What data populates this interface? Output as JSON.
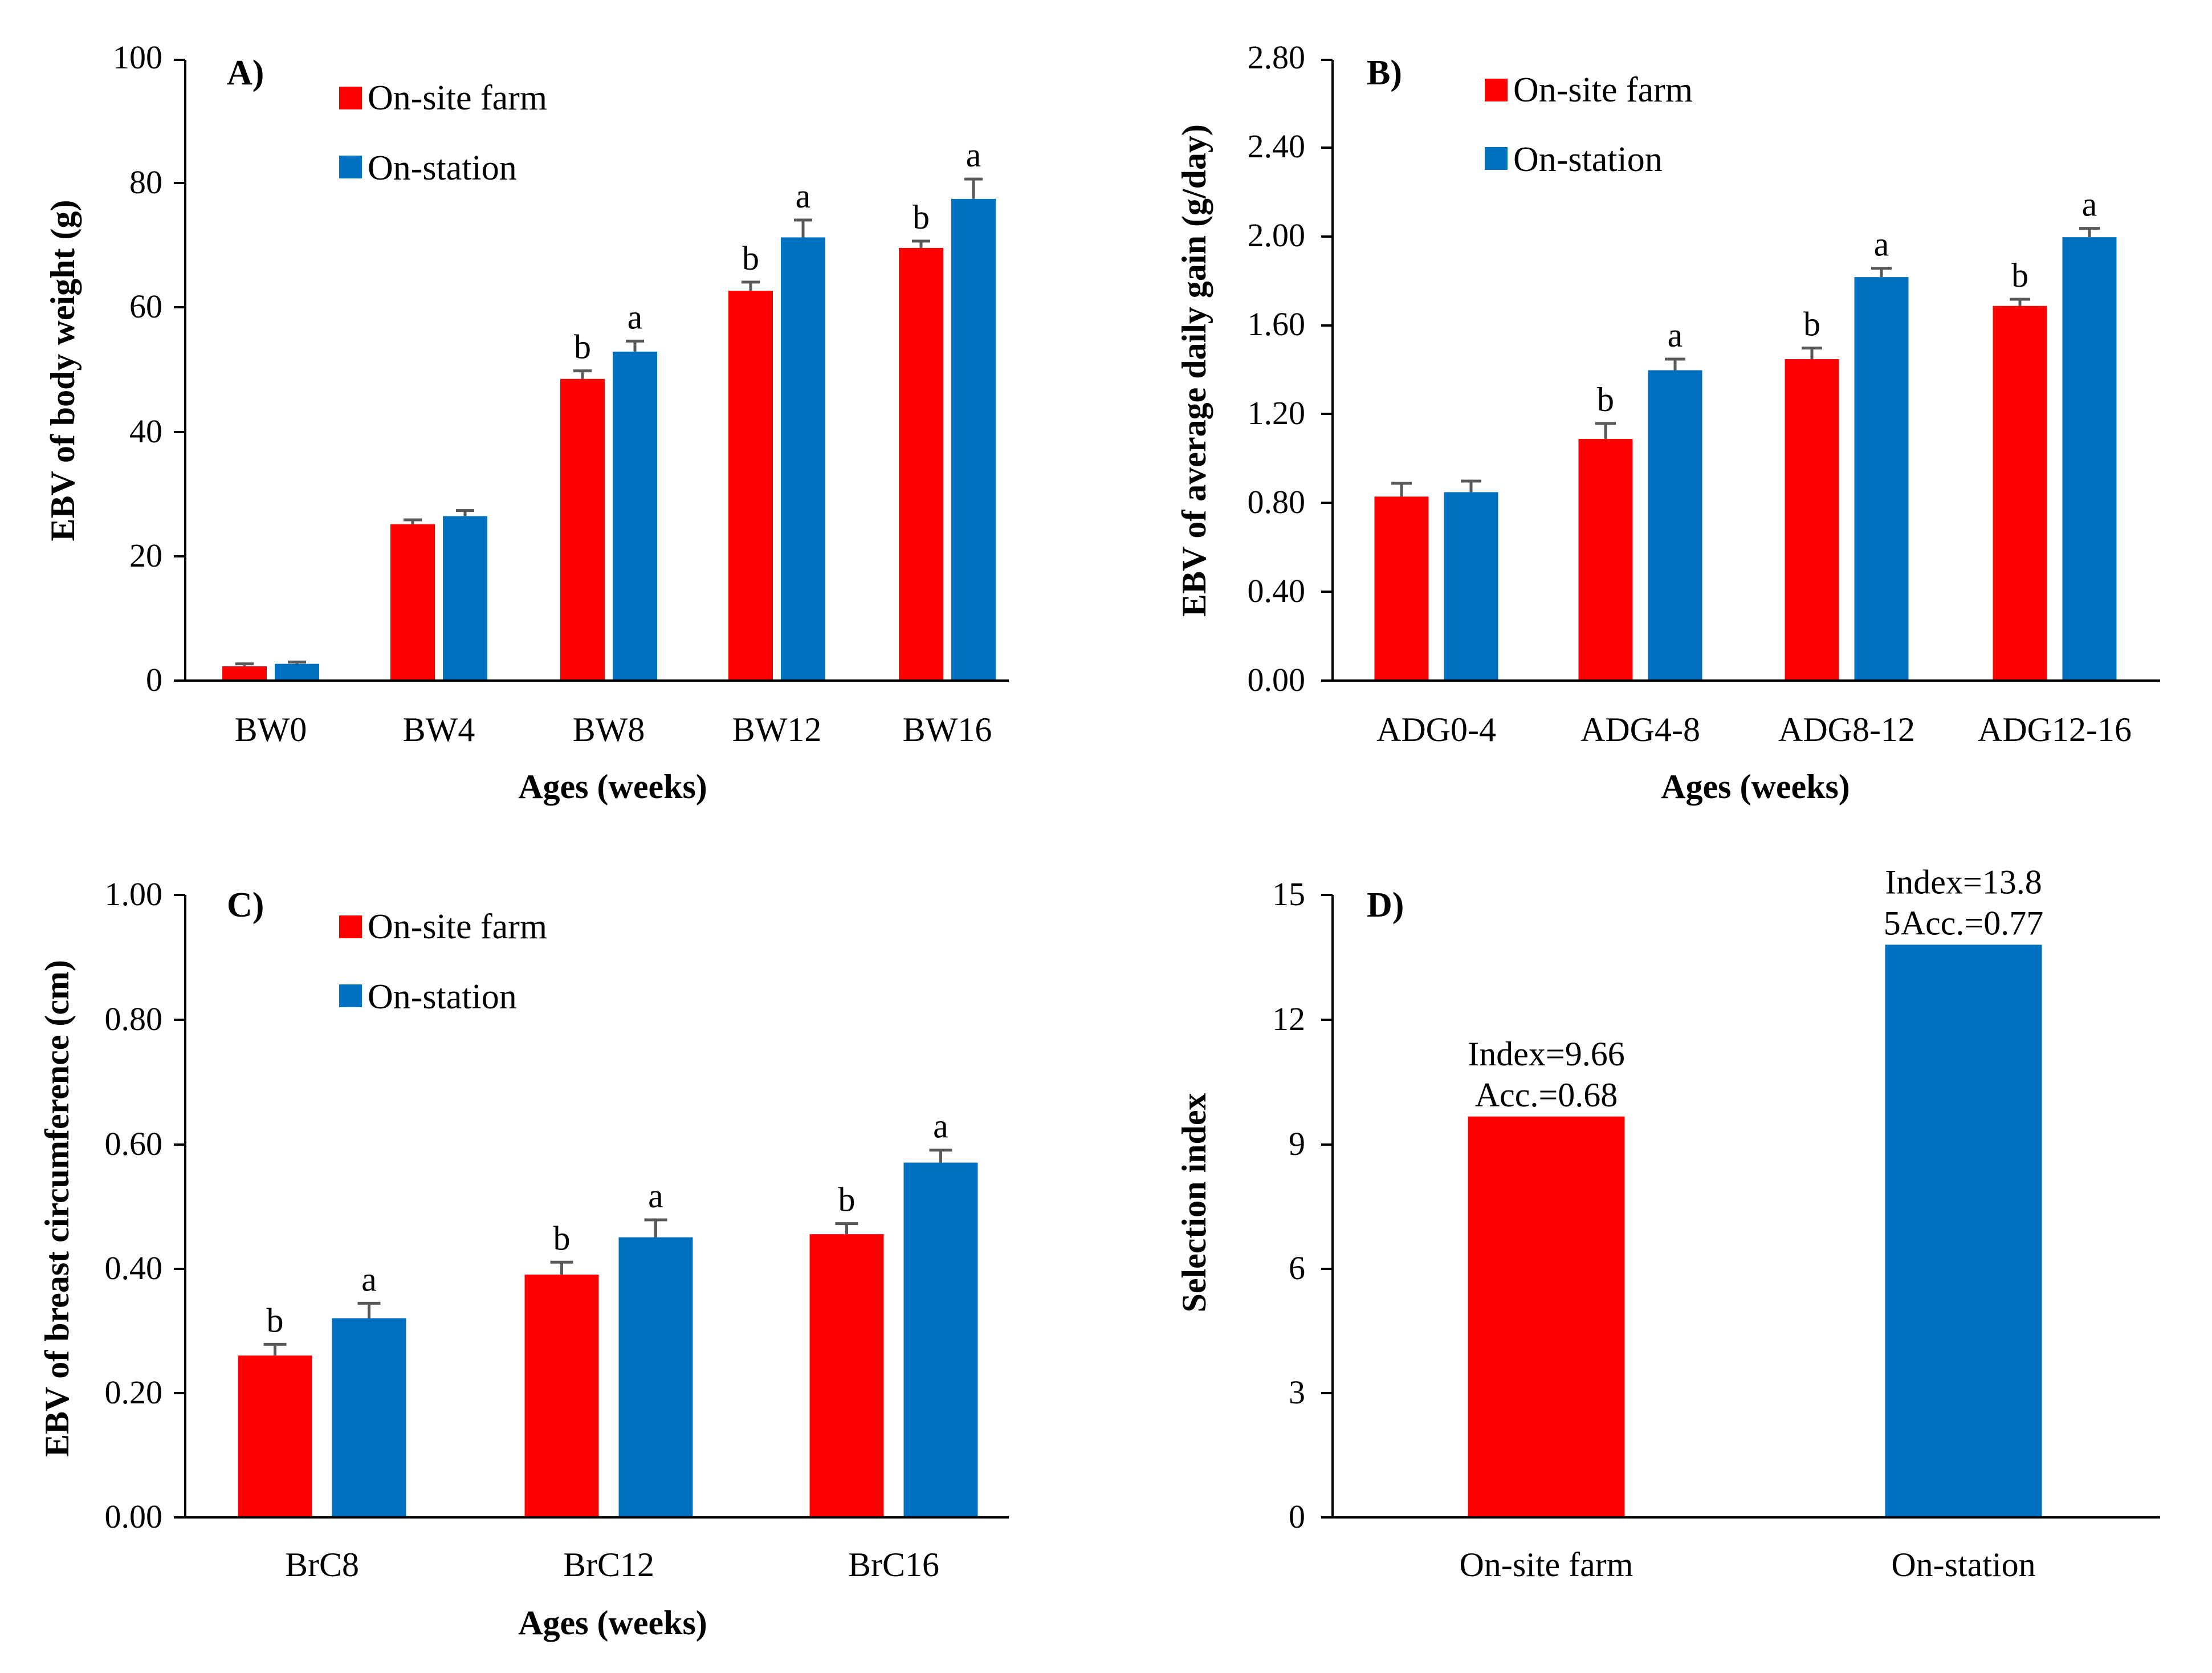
{
  "colors": {
    "farm": "#FF0000",
    "station": "#0070C0",
    "error": "#595959",
    "axis": "#000000"
  },
  "chart_data": [
    {
      "type": "bar",
      "panel": "A)",
      "categories": [
        "BW0",
        "BW4",
        "BW8",
        "BW12",
        "BW16"
      ],
      "series": [
        {
          "name": "On-site farm",
          "values": [
            2.3,
            25.2,
            48.6,
            62.8,
            69.7
          ],
          "errors": [
            0.4,
            0.7,
            1.3,
            1.4,
            1.1
          ],
          "letters": [
            "",
            "",
            "b",
            "b",
            "b"
          ]
        },
        {
          "name": "On-station",
          "values": [
            2.7,
            26.5,
            53.0,
            71.4,
            77.6
          ],
          "errors": [
            0.3,
            0.9,
            1.7,
            2.8,
            3.2
          ],
          "letters": [
            "",
            "",
            "a",
            "a",
            "a"
          ]
        }
      ],
      "xlabel": "Ages (weeks)",
      "ylabel": "EBV of  body weight (g)",
      "ylim": [
        0,
        100
      ],
      "yticks": [
        "0",
        "20",
        "40",
        "60",
        "80",
        "100"
      ],
      "legend": "top-left"
    },
    {
      "type": "bar",
      "panel": "B)",
      "categories": [
        "ADG0-4",
        "ADG4-8",
        "ADG8-12",
        "ADG12-16"
      ],
      "series": [
        {
          "name": "On-site farm",
          "values": [
            0.83,
            1.09,
            1.45,
            1.69
          ],
          "errors": [
            0.06,
            0.07,
            0.05,
            0.03
          ],
          "letters": [
            "",
            "b",
            "b",
            "b"
          ]
        },
        {
          "name": "On-station",
          "values": [
            0.85,
            1.4,
            1.82,
            2.0
          ],
          "errors": [
            0.05,
            0.05,
            0.04,
            0.04
          ],
          "letters": [
            "",
            "a",
            "a",
            "a"
          ]
        }
      ],
      "xlabel": "Ages (weeks)",
      "ylabel": "EBV of  average daily gain (g/day)",
      "ylim": [
        0,
        2.8
      ],
      "yticks": [
        "0.00",
        "0.40",
        "0.80",
        "1.20",
        "1.60",
        "2.00",
        "2.40",
        "2.80"
      ],
      "legend": "top-left"
    },
    {
      "type": "bar",
      "panel": "C)",
      "categories": [
        "BrC8",
        "BrC12",
        "BrC16"
      ],
      "series": [
        {
          "name": "On-site farm",
          "values": [
            0.26,
            0.39,
            0.455
          ],
          "errors": [
            0.018,
            0.02,
            0.017
          ],
          "letters": [
            "b",
            "b",
            "b"
          ]
        },
        {
          "name": "On-station",
          "values": [
            0.32,
            0.45,
            0.57
          ],
          "errors": [
            0.024,
            0.028,
            0.02
          ],
          "letters": [
            "a",
            "a",
            "a"
          ]
        }
      ],
      "xlabel": "Ages (weeks)",
      "ylabel": "EBV of breast circumference (cm)",
      "ylim": [
        0,
        1.0
      ],
      "yticks": [
        "0.00",
        "0.20",
        "0.40",
        "0.60",
        "0.80",
        "1.00"
      ],
      "legend": "top-left"
    },
    {
      "type": "bar",
      "panel": "D)",
      "categories": [
        "On-site farm",
        "On-station"
      ],
      "values": [
        9.66,
        13.8
      ],
      "bar_colors": [
        "#FF0000",
        "#0070C0"
      ],
      "annotations": [
        {
          "line1": "Index=9.66",
          "line2": "Acc.=0.68"
        },
        {
          "line1": "Index=13.8",
          "line2": "5Acc.=0.77"
        }
      ],
      "ylabel": "Selection index",
      "ylim": [
        0,
        15
      ],
      "yticks": [
        "0",
        "3",
        "6",
        "9",
        "12",
        "15"
      ]
    }
  ]
}
